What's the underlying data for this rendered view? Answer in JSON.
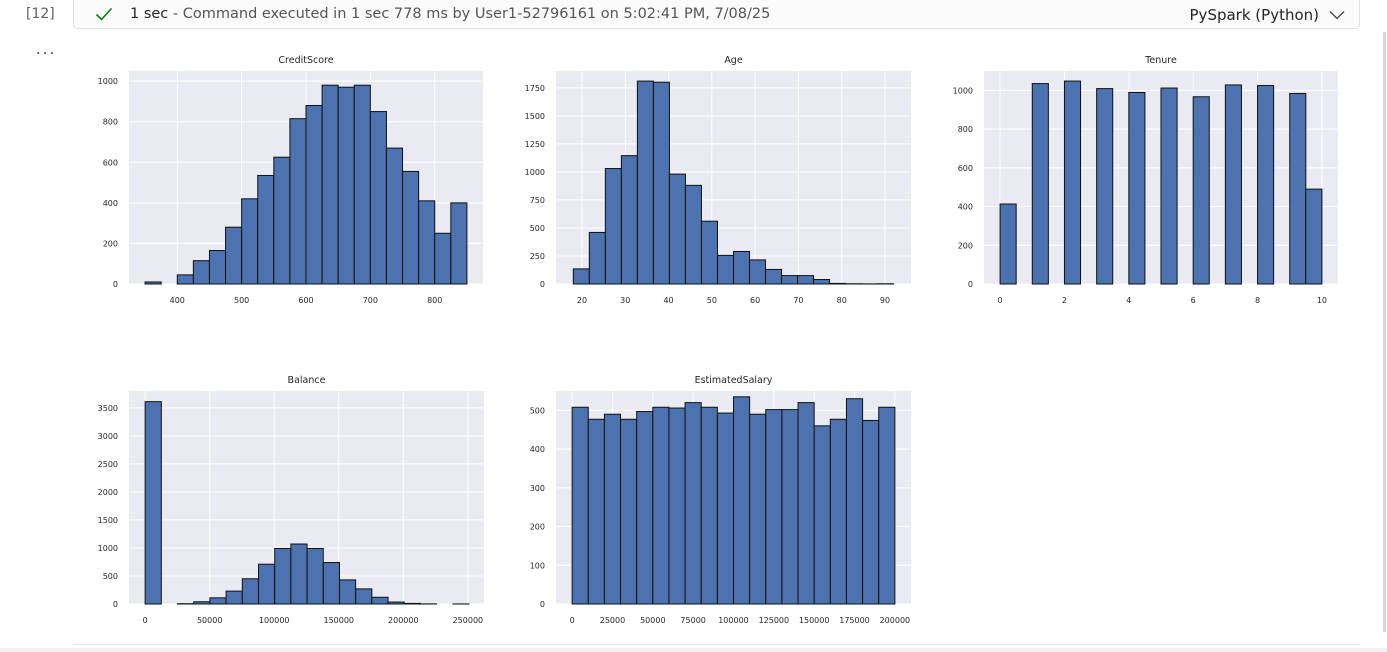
{
  "cell": {
    "execution_count": "[12]",
    "status": {
      "duration": "1 sec",
      "message": " - Command executed in 1 sec 778 ms by User1-52796161 on 5:02:41 PM, 7/08/25",
      "language": "PySpark (Python)",
      "success_color": "#107c10"
    },
    "output_menu_label": "..."
  },
  "colors": {
    "bar_fill": "#4c72b0",
    "bar_edge": "#111111",
    "plot_bg": "#eaeaf2",
    "grid": "#ffffff"
  },
  "chart_data": [
    {
      "type": "bar",
      "title": "CreditScore",
      "xlabel": "",
      "ylabel": "",
      "xlim": [
        325,
        875
      ],
      "ylim": [
        0,
        1050
      ],
      "xticks": [
        400,
        500,
        600,
        700,
        800
      ],
      "yticks": [
        0,
        200,
        400,
        600,
        800,
        1000
      ],
      "bin_edges": [
        350,
        375,
        400,
        425,
        450,
        475,
        500,
        525,
        550,
        575,
        600,
        625,
        650,
        675,
        700,
        725,
        750,
        775,
        800,
        825,
        850
      ],
      "values": [
        10,
        0,
        45,
        115,
        165,
        280,
        420,
        535,
        625,
        815,
        880,
        980,
        970,
        980,
        850,
        670,
        555,
        410,
        250,
        400
      ]
    },
    {
      "type": "bar",
      "title": "Age",
      "xlabel": "",
      "ylabel": "",
      "xlim": [
        14,
        96
      ],
      "ylim": [
        0,
        1900
      ],
      "xticks": [
        20,
        30,
        40,
        50,
        60,
        70,
        80,
        90
      ],
      "yticks": [
        0,
        250,
        500,
        750,
        1000,
        1250,
        1500,
        1750
      ],
      "bin_edges": [
        18,
        21.7,
        25.4,
        29.1,
        32.8,
        36.5,
        40.2,
        43.9,
        47.6,
        51.3,
        55.0,
        58.7,
        62.4,
        66.1,
        69.8,
        73.5,
        77.2,
        80.9,
        84.6,
        88.3,
        92
      ],
      "values": [
        135,
        460,
        1030,
        1145,
        1810,
        1800,
        980,
        880,
        560,
        255,
        290,
        215,
        130,
        75,
        75,
        40,
        5,
        2,
        1,
        2
      ]
    },
    {
      "type": "bar",
      "title": "Tenure",
      "xlabel": "",
      "ylabel": "",
      "xlim": [
        -0.5,
        10.5
      ],
      "ylim": [
        0,
        1100
      ],
      "xticks": [
        0,
        2,
        4,
        6,
        8,
        10
      ],
      "yticks": [
        0,
        200,
        400,
        600,
        800,
        1000
      ],
      "bin_edges": [
        0,
        0.5,
        1,
        1.5,
        2,
        2.5,
        3,
        3.5,
        4,
        4.5,
        5,
        5.5,
        6,
        6.5,
        7,
        7.5,
        8,
        8.5,
        9,
        9.5,
        10
      ],
      "values": [
        413,
        0,
        1035,
        0,
        1048,
        0,
        1009,
        0,
        989,
        0,
        1012,
        0,
        967,
        0,
        1028,
        0,
        1025,
        0,
        984,
        490
      ]
    },
    {
      "type": "bar",
      "title": "Balance",
      "xlabel": "",
      "ylabel": "",
      "xlim": [
        -12500,
        262500
      ],
      "ylim": [
        0,
        3800
      ],
      "xticks": [
        0,
        50000,
        100000,
        150000,
        200000,
        250000
      ],
      "yticks": [
        0,
        500,
        1000,
        1500,
        2000,
        2500,
        3000,
        3500
      ],
      "bin_edges": [
        0,
        12545,
        25090,
        37635,
        50180,
        62725,
        75270,
        87815,
        100360,
        112905,
        125450,
        137995,
        150540,
        163085,
        175630,
        188175,
        200720,
        213265,
        225810,
        238355,
        250900
      ],
      "values": [
        3610,
        0,
        5,
        40,
        110,
        230,
        450,
        710,
        990,
        1070,
        990,
        740,
        430,
        270,
        120,
        35,
        10,
        2,
        0,
        1
      ]
    },
    {
      "type": "bar",
      "title": "EstimatedSalary",
      "xlabel": "",
      "ylabel": "",
      "xlim": [
        -10000,
        210000
      ],
      "ylim": [
        0,
        550
      ],
      "xticks": [
        0,
        25000,
        50000,
        75000,
        100000,
        125000,
        150000,
        175000,
        200000
      ],
      "yticks": [
        0,
        100,
        200,
        300,
        400,
        500
      ],
      "bin_edges": [
        0,
        10000,
        20000,
        30000,
        40000,
        50000,
        60000,
        70000,
        80000,
        90000,
        100000,
        110000,
        120000,
        130000,
        140000,
        150000,
        160000,
        170000,
        180000,
        190000,
        200000
      ],
      "values": [
        508,
        477,
        490,
        477,
        497,
        508,
        506,
        520,
        508,
        493,
        535,
        490,
        502,
        502,
        520,
        460,
        477,
        530,
        474,
        508
      ]
    }
  ]
}
